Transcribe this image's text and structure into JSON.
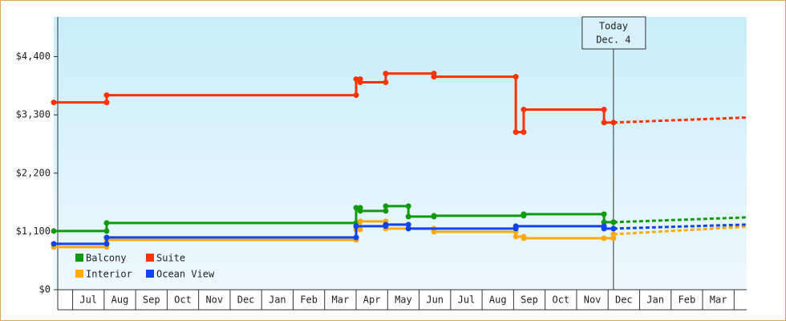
{
  "chart_data": {
    "type": "step-line",
    "categories": [
      "Jul",
      "Aug",
      "Sep",
      "Oct",
      "Nov",
      "Dec",
      "Jan",
      "Feb",
      "Mar",
      "Apr",
      "May",
      "Jun",
      "Jul",
      "Aug",
      "Sep",
      "Oct",
      "Nov",
      "Dec",
      "Jan",
      "Feb",
      "Mar"
    ],
    "xlim": [
      0,
      22
    ],
    "ylim": [
      0,
      5150
    ],
    "yticks": [
      {
        "value": 0,
        "label": "$0"
      },
      {
        "value": 1100,
        "label": "$1,100"
      },
      {
        "value": 2200,
        "label": "$2,200"
      },
      {
        "value": 3300,
        "label": "$3,300"
      },
      {
        "value": 4400,
        "label": "$4,400"
      }
    ],
    "today": {
      "x": 17.77,
      "label": "Today",
      "date": "Dec. 4"
    },
    "series": [
      {
        "name": "Balcony",
        "color": "#119911",
        "x": [
          0,
          1.68,
          9.6,
          9.73,
          10.54,
          11.26,
          12.07,
          14.92,
          17.47,
          17.77
        ],
        "values": [
          1107,
          1260,
          1547,
          1487,
          1578,
          1380,
          1396,
          1426,
          1274,
          1274
        ],
        "forecast": {
          "x": [
            17.77,
            22
          ],
          "values": [
            1274,
            1365
          ]
        }
      },
      {
        "name": "Suite",
        "color": "#ff3300",
        "x": [
          0,
          1.68,
          9.6,
          9.73,
          10.54,
          12.07,
          14.67,
          14.92,
          17.47,
          17.77
        ],
        "values": [
          3535,
          3672,
          3975,
          3915,
          4080,
          4020,
          2975,
          3400,
          3155,
          3155
        ],
        "forecast": {
          "x": [
            17.77,
            22
          ],
          "values": [
            3155,
            3250
          ]
        }
      },
      {
        "name": "Interior",
        "color": "#ffaa11",
        "x": [
          0,
          1.68,
          9.6,
          9.73,
          10.54,
          12.07,
          14.67,
          14.92,
          17.47,
          17.77
        ],
        "values": [
          804,
          940,
          1138,
          1290,
          1153,
          1092,
          1001,
          971,
          971,
          1047
        ],
        "forecast": {
          "x": [
            17.77,
            22
          ],
          "values": [
            1047,
            1190
          ]
        }
      },
      {
        "name": "Ocean View",
        "color": "#1144ee",
        "x": [
          0,
          1.68,
          9.6,
          10.54,
          11.26,
          14.67,
          17.47,
          17.77
        ],
        "values": [
          865,
          986,
          1198,
          1229,
          1153,
          1198,
          1153,
          1153
        ],
        "forecast": {
          "x": [
            17.77,
            22
          ],
          "values": [
            1153,
            1230
          ]
        }
      }
    ]
  }
}
